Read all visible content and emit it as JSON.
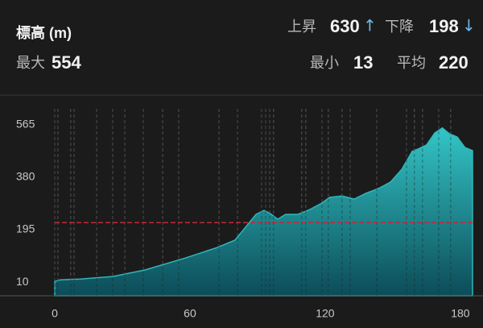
{
  "header": {
    "title": "標高 (m)",
    "ascent": {
      "label": "上昇",
      "value": 630,
      "arrow": "↑"
    },
    "descent": {
      "label": "下降",
      "value": 198,
      "arrow": "↓"
    },
    "max": {
      "label": "最大",
      "value": 554
    },
    "min": {
      "label": "最小",
      "value": 13
    },
    "average": {
      "label": "平均",
      "value": 220
    }
  },
  "chart_data": {
    "type": "area",
    "series": [
      {
        "x": [
          0,
          2.5,
          11.4,
          25.7,
          40,
          57.9,
          72,
          80,
          84.6,
          89.3,
          92.9,
          95.7,
          98.9,
          102.5,
          107.9,
          113.2,
          118.6,
          122,
          127.5,
          132.9,
          138,
          143.6,
          149,
          154,
          158.6,
          161.4,
          165,
          168.6,
          172,
          175,
          178.6,
          182,
          185.4
        ],
        "values": [
          13,
          18,
          21,
          30,
          53,
          95,
          132,
          158,
          203,
          249,
          263,
          252,
          232,
          249,
          249,
          266,
          289,
          309,
          314,
          303,
          323,
          340,
          363,
          408,
          471,
          480,
          494,
          536,
          554,
          534,
          522,
          485,
          474
        ],
        "color": "#2fc0c4"
      }
    ],
    "markers": [
      0,
      1.4,
      7.1,
      8.6,
      18.6,
      25.7,
      31.1,
      39.3,
      47.9,
      55,
      72.9,
      81.1,
      91.8,
      93.6,
      95.4,
      97.1,
      109.6,
      111.4,
      118.6,
      121.4,
      127.5,
      131.1,
      142.9,
      156.1,
      159.6,
      163.2,
      170.4,
      175.7
    ],
    "average_color": "#c0283a",
    "xlim": [
      0,
      185.4
    ],
    "ylim": [
      -38,
      664
    ],
    "xticks": [
      0,
      60,
      120,
      180
    ],
    "yticks": [
      10,
      195,
      380,
      565
    ]
  }
}
